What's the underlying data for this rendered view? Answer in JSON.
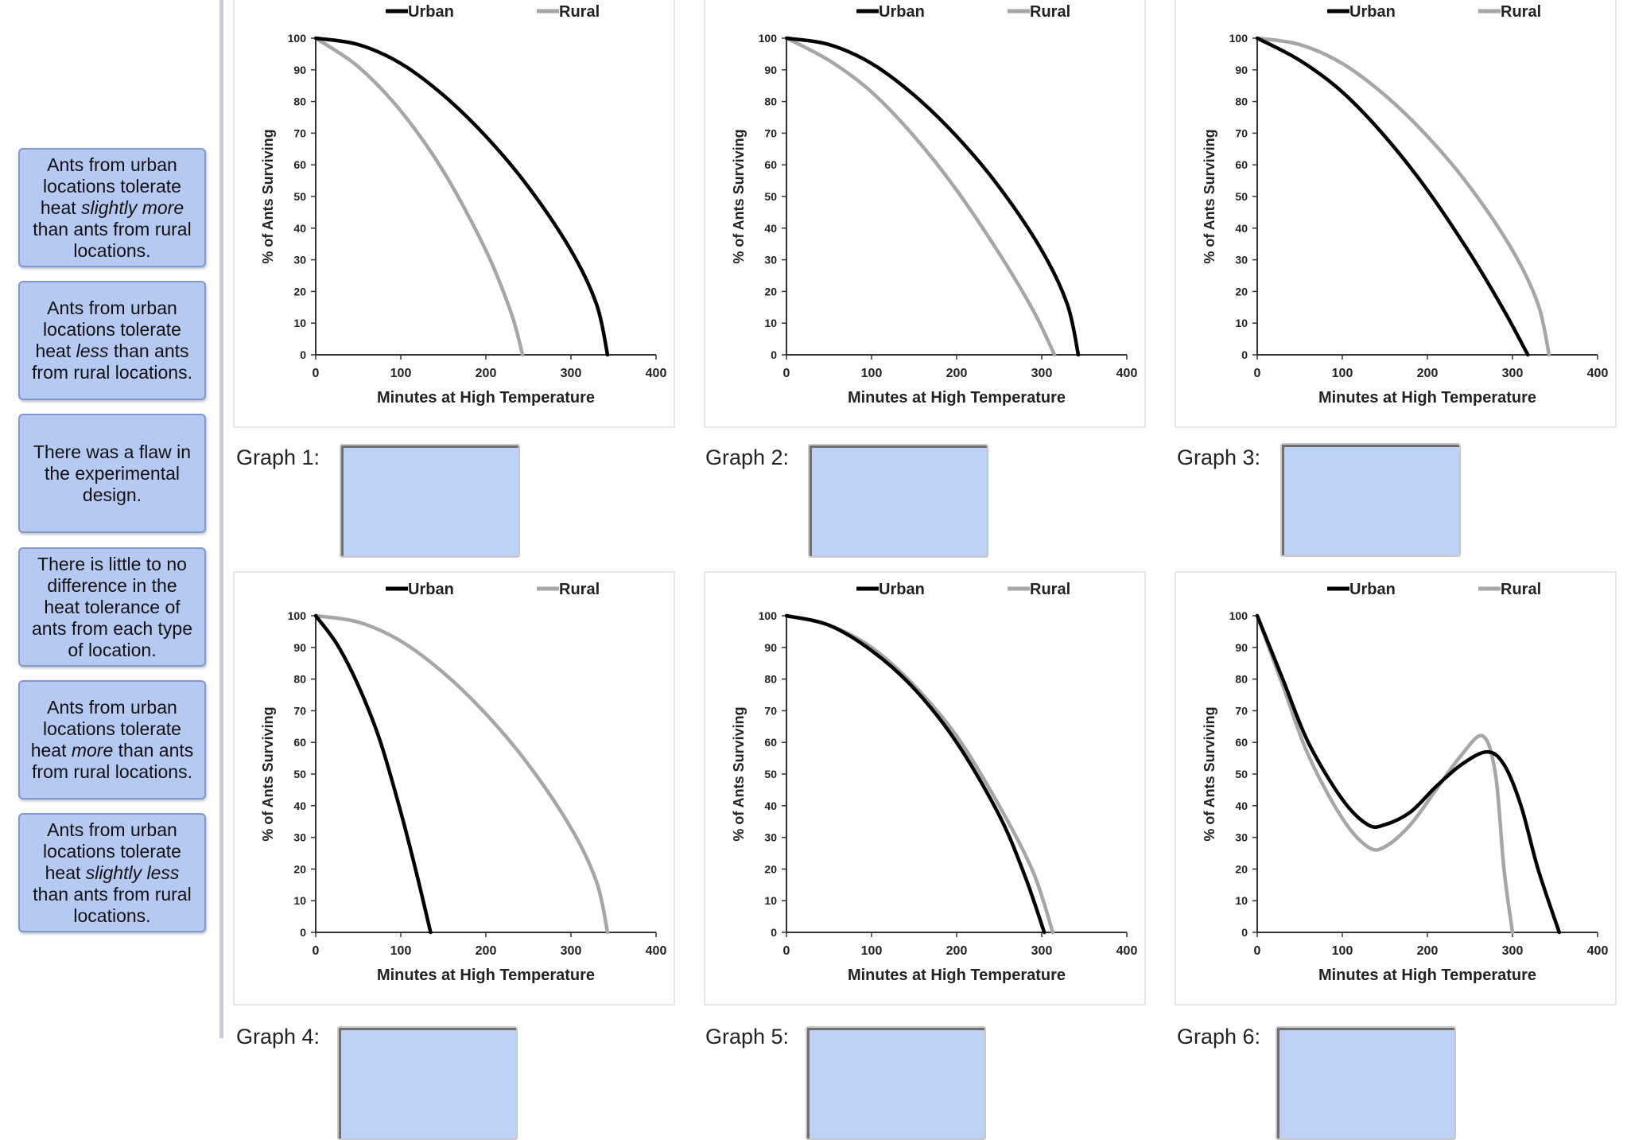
{
  "answer_bank": [
    {
      "pre": "Ants from urban locations tolerate heat ",
      "em": "slightly more",
      "post": " than ants from rural locations."
    },
    {
      "pre": "Ants from urban locations tolerate heat ",
      "em": "less",
      "post": " than ants from rural locations."
    },
    {
      "pre": "There was a flaw in the experimental design.",
      "em": "",
      "post": ""
    },
    {
      "pre": "There is little to no difference in the heat tolerance of ants from each type of location.",
      "em": "",
      "post": ""
    },
    {
      "pre": "Ants from urban locations tolerate heat ",
      "em": "more",
      "post": " than ants from rural locations."
    },
    {
      "pre": "Ants from urban locations tolerate heat ",
      "em": "slightly less",
      "post": " than ants from rural locations."
    }
  ],
  "graph_labels": [
    "Graph 1:",
    "Graph 2:",
    "Graph 3:",
    "Graph 4:",
    "Graph 5:",
    "Graph 6:"
  ],
  "colors": {
    "urban": "#000000",
    "rural": "#a6a6a6",
    "tile": "#b6c9f2",
    "drop": "#bdd0f5"
  },
  "chart_data": [
    {
      "type": "line",
      "title": "Graph 1",
      "xlabel": "Minutes at High Temperature",
      "ylabel": "% of Ants Surviving",
      "xlim": [
        0,
        400
      ],
      "ylim": [
        0,
        100
      ],
      "xticks": [
        0,
        100,
        200,
        300,
        400
      ],
      "yticks": [
        0,
        10,
        20,
        30,
        40,
        50,
        60,
        70,
        80,
        90,
        100
      ],
      "legend": "top",
      "series": [
        {
          "name": "Urban",
          "x": [
            0,
            50,
            100,
            150,
            200,
            250,
            300,
            330,
            343
          ],
          "y": [
            100,
            98,
            92,
            82,
            69,
            53,
            33,
            16,
            0
          ]
        },
        {
          "name": "Rural",
          "x": [
            0,
            50,
            100,
            150,
            200,
            230,
            243
          ],
          "y": [
            100,
            91,
            77,
            58,
            33,
            13,
            0
          ]
        }
      ]
    },
    {
      "type": "line",
      "title": "Graph 2",
      "xlabel": "Minutes at High Temperature",
      "ylabel": "% of Ants Surviving",
      "xlim": [
        0,
        400
      ],
      "ylim": [
        0,
        100
      ],
      "xticks": [
        0,
        100,
        200,
        300,
        400
      ],
      "yticks": [
        0,
        10,
        20,
        30,
        40,
        50,
        60,
        70,
        80,
        90,
        100
      ],
      "legend": "top",
      "series": [
        {
          "name": "Urban",
          "x": [
            0,
            50,
            100,
            150,
            200,
            250,
            300,
            330,
            343
          ],
          "y": [
            100,
            98,
            92,
            82,
            69,
            53,
            33,
            16,
            0
          ]
        },
        {
          "name": "Rural",
          "x": [
            0,
            50,
            100,
            150,
            200,
            250,
            290,
            315
          ],
          "y": [
            100,
            93,
            83,
            69,
            52,
            32,
            14,
            0
          ]
        }
      ]
    },
    {
      "type": "line",
      "title": "Graph 3",
      "xlabel": "Minutes at High Temperature",
      "ylabel": "% of Ants Surviving",
      "xlim": [
        0,
        400
      ],
      "ylim": [
        0,
        100
      ],
      "xticks": [
        0,
        100,
        200,
        300,
        400
      ],
      "yticks": [
        0,
        10,
        20,
        30,
        40,
        50,
        60,
        70,
        80,
        90,
        100
      ],
      "legend": "top",
      "series": [
        {
          "name": "Urban",
          "x": [
            0,
            50,
            100,
            150,
            200,
            250,
            290,
            318
          ],
          "y": [
            100,
            93,
            83,
            69,
            52,
            32,
            14,
            0
          ]
        },
        {
          "name": "Rural",
          "x": [
            0,
            50,
            100,
            150,
            200,
            250,
            300,
            330,
            343
          ],
          "y": [
            100,
            98,
            92,
            82,
            69,
            53,
            33,
            16,
            0
          ]
        }
      ]
    },
    {
      "type": "line",
      "title": "Graph 4",
      "xlabel": "Minutes at High Temperature",
      "ylabel": "% of Ants Surviving",
      "xlim": [
        0,
        400
      ],
      "ylim": [
        0,
        100
      ],
      "xticks": [
        0,
        100,
        200,
        300,
        400
      ],
      "yticks": [
        0,
        10,
        20,
        30,
        40,
        50,
        60,
        70,
        80,
        90,
        100
      ],
      "legend": "top",
      "series": [
        {
          "name": "Urban",
          "x": [
            0,
            25,
            50,
            75,
            100,
            120,
            135
          ],
          "y": [
            100,
            91,
            78,
            61,
            38,
            17,
            0
          ]
        },
        {
          "name": "Rural",
          "x": [
            0,
            50,
            100,
            150,
            200,
            250,
            300,
            330,
            343
          ],
          "y": [
            100,
            98,
            92,
            82,
            69,
            53,
            33,
            16,
            0
          ]
        }
      ]
    },
    {
      "type": "line",
      "title": "Graph 5",
      "xlabel": "Minutes at High Temperature",
      "ylabel": "% of Ants Surviving",
      "xlim": [
        0,
        400
      ],
      "ylim": [
        0,
        100
      ],
      "xticks": [
        0,
        100,
        200,
        300,
        400
      ],
      "yticks": [
        0,
        10,
        20,
        30,
        40,
        50,
        60,
        70,
        80,
        90,
        100
      ],
      "legend": "top",
      "series": [
        {
          "name": "Urban",
          "x": [
            0,
            50,
            100,
            150,
            200,
            250,
            280,
            303
          ],
          "y": [
            100,
            97,
            89,
            77,
            60,
            37,
            18,
            0
          ]
        },
        {
          "name": "Rural",
          "x": [
            0,
            50,
            100,
            150,
            200,
            250,
            290,
            313
          ],
          "y": [
            100,
            97,
            90,
            78,
            62,
            40,
            19,
            0
          ]
        }
      ]
    },
    {
      "type": "line",
      "title": "Graph 6",
      "xlabel": "Minutes at High Temperature",
      "ylabel": "% of Ants Surviving",
      "xlim": [
        0,
        400
      ],
      "ylim": [
        0,
        100
      ],
      "xticks": [
        0,
        100,
        200,
        300,
        400
      ],
      "yticks": [
        0,
        10,
        20,
        30,
        40,
        50,
        60,
        70,
        80,
        90,
        100
      ],
      "legend": "top",
      "series": [
        {
          "name": "Urban",
          "x": [
            0,
            30,
            60,
            100,
            130,
            150,
            180,
            210,
            240,
            270,
            290,
            310,
            330,
            355
          ],
          "y": [
            100,
            80,
            60,
            42,
            34,
            34,
            38,
            46,
            53,
            57,
            53,
            40,
            20,
            0
          ]
        },
        {
          "name": "Rural",
          "x": [
            0,
            30,
            60,
            100,
            130,
            150,
            180,
            210,
            240,
            265,
            280,
            290,
            300
          ],
          "y": [
            100,
            78,
            56,
            36,
            27,
            27,
            34,
            45,
            56,
            62,
            50,
            20,
            0
          ]
        }
      ]
    }
  ]
}
